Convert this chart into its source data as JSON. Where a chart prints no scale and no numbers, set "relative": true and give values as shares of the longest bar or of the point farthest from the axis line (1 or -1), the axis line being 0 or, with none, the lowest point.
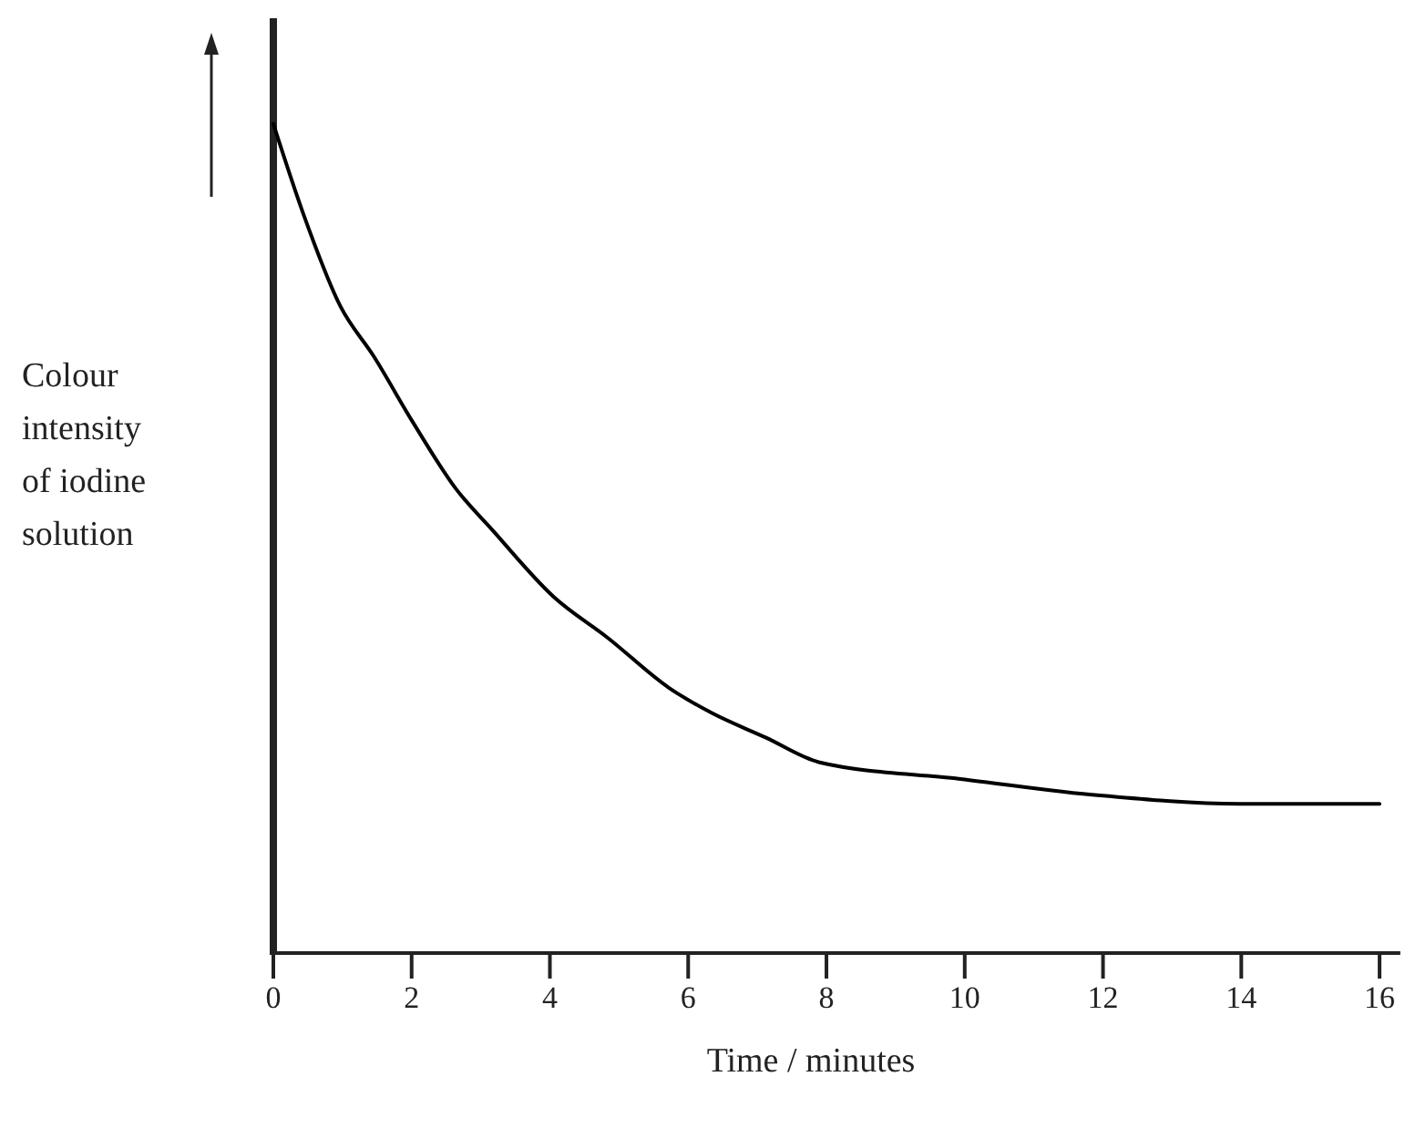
{
  "chart_data": {
    "type": "line",
    "xlabel": "Time / minutes",
    "ylabel": "Colour intensity of iodine solution",
    "relative": true,
    "xlim": [
      0,
      16.3
    ],
    "xticks": [
      0,
      2,
      4,
      6,
      8,
      10,
      12,
      14,
      16
    ],
    "grid": false,
    "marker": "none",
    "line_style": "solid",
    "series": [
      {
        "color": "#000000",
        "x": [
          0,
          0.44,
          0.97,
          1.45,
          2.02,
          2.64,
          3.17,
          4.05,
          4.84,
          5.72,
          6.33,
          7.12,
          7.9,
          9.94,
          11.96,
          13.98,
          16
        ],
        "values": [
          1,
          0.89,
          0.78,
          0.72,
          0.64,
          0.56,
          0.51,
          0.43,
          0.38,
          0.32,
          0.29,
          0.26,
          0.23,
          0.21,
          0.19,
          0.18,
          0.18
        ]
      }
    ]
  }
}
